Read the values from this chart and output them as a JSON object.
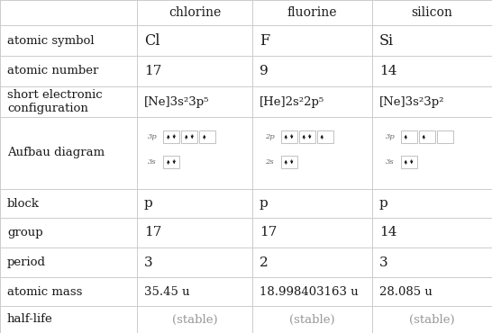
{
  "columns": [
    "",
    "chlorine",
    "fluorine",
    "silicon"
  ],
  "row_labels": [
    "atomic symbol",
    "atomic number",
    "short electronic\nconfiguration",
    "Aufbau diagram",
    "block",
    "group",
    "period",
    "atomic mass",
    "half-life"
  ],
  "cl_values": [
    "Cl",
    "17",
    "[Ne]3s²3p⁵",
    "aufbau_cl",
    "p",
    "17",
    "3",
    "35.45 u",
    "(stable)"
  ],
  "f_values": [
    "F",
    "9",
    "[He]2s²2p⁵",
    "aufbau_f",
    "p",
    "17",
    "2",
    "18.998403163 u",
    "(stable)"
  ],
  "si_values": [
    "Si",
    "14",
    "[Ne]3s²3p²",
    "aufbau_si",
    "p",
    "14",
    "3",
    "28.085 u",
    "(stable)"
  ],
  "line_color": "#cccccc",
  "text_color": "#1a1a1a",
  "gray_color": "#999999"
}
